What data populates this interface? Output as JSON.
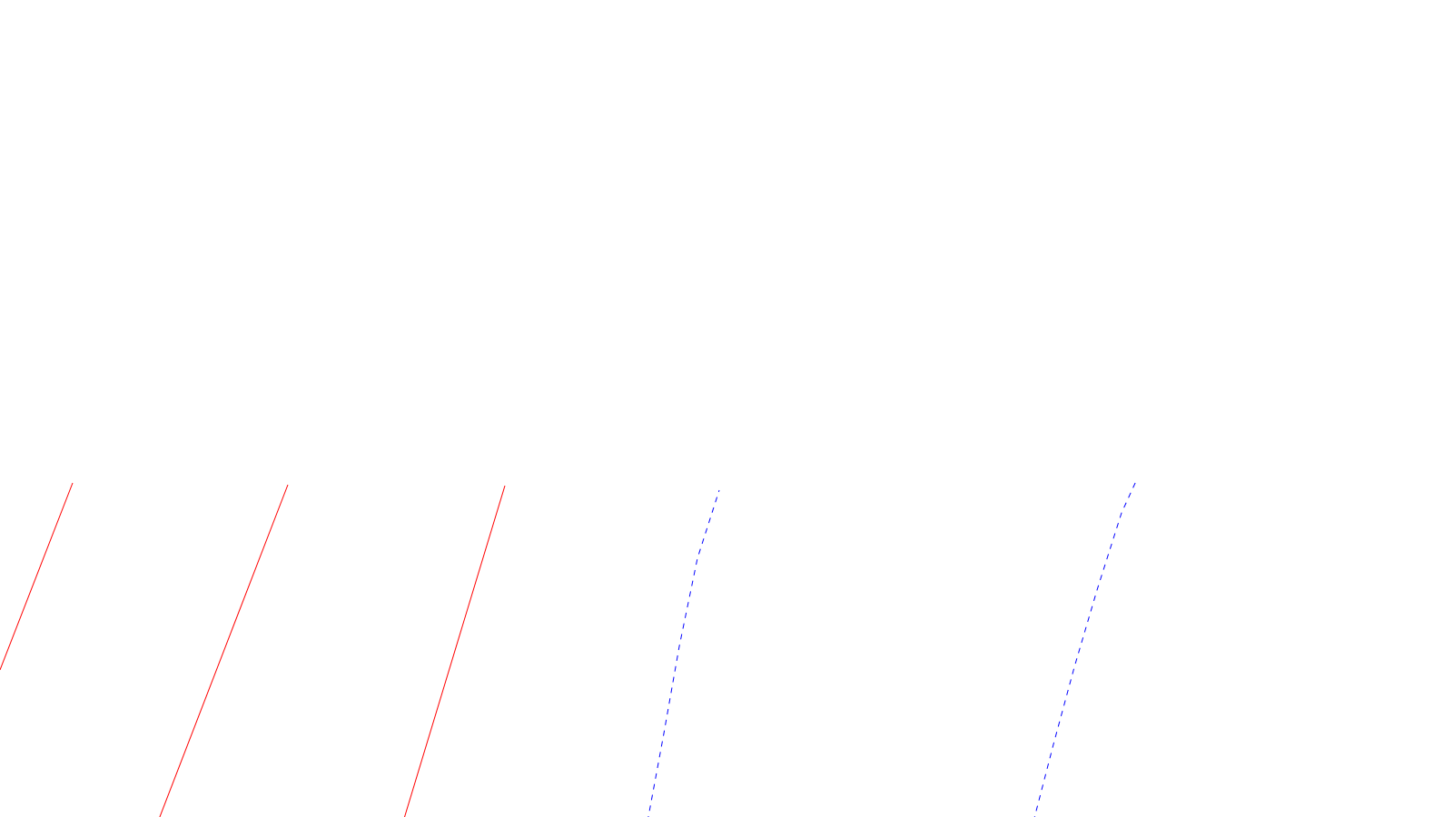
{
  "diagram": {
    "background": "#ffffff",
    "colors": {
      "solid": "#ff0000",
      "dashed": "#0000ff"
    },
    "line_styles": [
      "solid",
      "solid",
      "solid",
      "dashed",
      "dashed"
    ]
  }
}
